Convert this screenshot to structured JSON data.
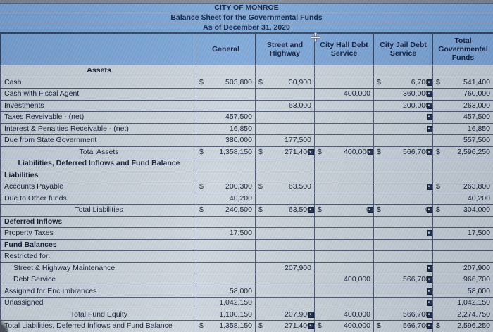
{
  "colors": {
    "header_blue": "#7aa6d8",
    "cell_background": "#ccd4db",
    "grid_line": "#4a566e",
    "text": "#0c1730"
  },
  "icons": {
    "cell_cursor": "excel-plus-cursor",
    "cell_flag": "cell-flag-marker"
  },
  "header": {
    "title1": "CITY OF MONROE",
    "title2": "Balance Sheet for the Governmental Funds",
    "title3": "As of December 31, 2020",
    "columns": [
      "General",
      "Street and Highway",
      "City Hall Debt Service",
      "City Jail Debt Service",
      "Total Governmental Funds"
    ]
  },
  "table": {
    "rows": [
      {
        "label": "Assets",
        "kind": "section-center",
        "cells": [
          null,
          null,
          null,
          null,
          null
        ]
      },
      {
        "label": "Cash",
        "kind": "item",
        "cells": [
          {
            "d": "$",
            "v": "503,800"
          },
          {
            "d": "$",
            "v": "30,900"
          },
          null,
          {
            "d": "$",
            "v": "6,700",
            "m": true
          },
          {
            "d": "$",
            "v": "541,400"
          }
        ]
      },
      {
        "label": "Cash with Fiscal Agent",
        "kind": "item",
        "cells": [
          null,
          null,
          {
            "v": "400,000"
          },
          {
            "v": "360,000",
            "m": true
          },
          {
            "v": "760,000"
          }
        ]
      },
      {
        "label": "Investments",
        "kind": "item",
        "cells": [
          null,
          {
            "v": "63,000"
          },
          null,
          {
            "v": "200,000",
            "m": true
          },
          {
            "v": "263,000"
          }
        ]
      },
      {
        "label": "Taxes Reveivable - (net)",
        "kind": "item",
        "cells": [
          {
            "v": "457,500"
          },
          null,
          null,
          {
            "m": true
          },
          {
            "v": "457,500"
          }
        ]
      },
      {
        "label": "Interest & Penalties Receivable - (net)",
        "kind": "item",
        "cells": [
          {
            "v": "16,850"
          },
          null,
          null,
          {
            "m": true
          },
          {
            "v": "16,850"
          }
        ]
      },
      {
        "label": "Due from State Government",
        "kind": "item",
        "cells": [
          {
            "v": "380,000"
          },
          {
            "v": "177,500"
          },
          null,
          null,
          {
            "v": "557,500"
          }
        ]
      },
      {
        "label": "Total Assets",
        "kind": "total-center",
        "cells": [
          {
            "d": "$",
            "v": "1,358,150"
          },
          {
            "d": "$",
            "v": "271,400",
            "m": true
          },
          {
            "d": "$",
            "v": "400,000",
            "m": true
          },
          {
            "d": "$",
            "v": "566,700",
            "m": true
          },
          {
            "d": "$",
            "v": "2,596,250"
          }
        ]
      },
      {
        "label": "Liabilities, Deferred Inflows and Fund Balance",
        "kind": "section-center",
        "cells": [
          null,
          null,
          null,
          null,
          null
        ]
      },
      {
        "label": "Liabilities",
        "kind": "section",
        "cells": [
          null,
          null,
          null,
          null,
          null
        ]
      },
      {
        "label": "Accounts Payable",
        "kind": "item",
        "cells": [
          {
            "d": "$",
            "v": "200,300"
          },
          {
            "d": "$",
            "v": "63,500"
          },
          null,
          {
            "m": true
          },
          {
            "d": "$",
            "v": "263,800"
          }
        ]
      },
      {
        "label": "Due to Other funds",
        "kind": "item",
        "cells": [
          {
            "v": "40,200"
          },
          null,
          null,
          null,
          {
            "v": "40,200"
          }
        ]
      },
      {
        "label": "Total Liabilities",
        "kind": "total-center",
        "cells": [
          {
            "d": "$",
            "v": "240,500"
          },
          {
            "d": "$",
            "v": "63,500",
            "m": true
          },
          {
            "d": "$",
            "v": "0",
            "m": true
          },
          {
            "d": "$",
            "v": "0",
            "m": true
          },
          {
            "d": "$",
            "v": "304,000"
          }
        ]
      },
      {
        "label": "Deferred Inflows",
        "kind": "section",
        "cells": [
          null,
          null,
          null,
          null,
          null
        ]
      },
      {
        "label": "Property Taxes",
        "kind": "item",
        "cells": [
          {
            "v": "17,500"
          },
          null,
          null,
          {
            "m": true
          },
          {
            "v": "17,500"
          }
        ]
      },
      {
        "label": "Fund Balances",
        "kind": "section",
        "cells": [
          null,
          null,
          null,
          null,
          null
        ]
      },
      {
        "label": "Restricted for:",
        "kind": "item",
        "cells": [
          null,
          null,
          null,
          null,
          null
        ]
      },
      {
        "label": "Street & Highway Maintenance",
        "kind": "indent",
        "cells": [
          null,
          {
            "v": "207,900"
          },
          null,
          {
            "m": true
          },
          {
            "v": "207,900"
          }
        ]
      },
      {
        "label": "Debt Service",
        "kind": "indent",
        "cells": [
          null,
          null,
          {
            "v": "400,000"
          },
          {
            "v": "566,700",
            "m": true
          },
          {
            "v": "966,700"
          }
        ]
      },
      {
        "label": "Assigned for Encumbrances",
        "kind": "item",
        "cells": [
          {
            "v": "58,000"
          },
          null,
          null,
          {
            "m": true
          },
          {
            "v": "58,000"
          }
        ]
      },
      {
        "label": "Unassigned",
        "kind": "item",
        "cells": [
          {
            "v": "1,042,150"
          },
          null,
          null,
          {
            "m": true
          },
          {
            "v": "1,042,150"
          }
        ]
      },
      {
        "label": "Total Fund Equity",
        "kind": "total-center",
        "cells": [
          {
            "v": "1,100,150"
          },
          {
            "v": "207,900",
            "m": true
          },
          {
            "v": "400,000"
          },
          {
            "v": "566,700",
            "m": true
          },
          {
            "v": "2,274,750"
          }
        ]
      },
      {
        "label": "Total Liabilities, Deferred Inflows and Fund Balance",
        "kind": "item",
        "cells": [
          {
            "d": "$",
            "v": "1,358,150"
          },
          {
            "d": "$",
            "v": "271,400",
            "m": true
          },
          {
            "d": "$",
            "v": "400,000"
          },
          {
            "d": "$",
            "v": "566,700",
            "m": true
          },
          {
            "d": "$",
            "v": "2,596,250"
          }
        ]
      }
    ]
  }
}
